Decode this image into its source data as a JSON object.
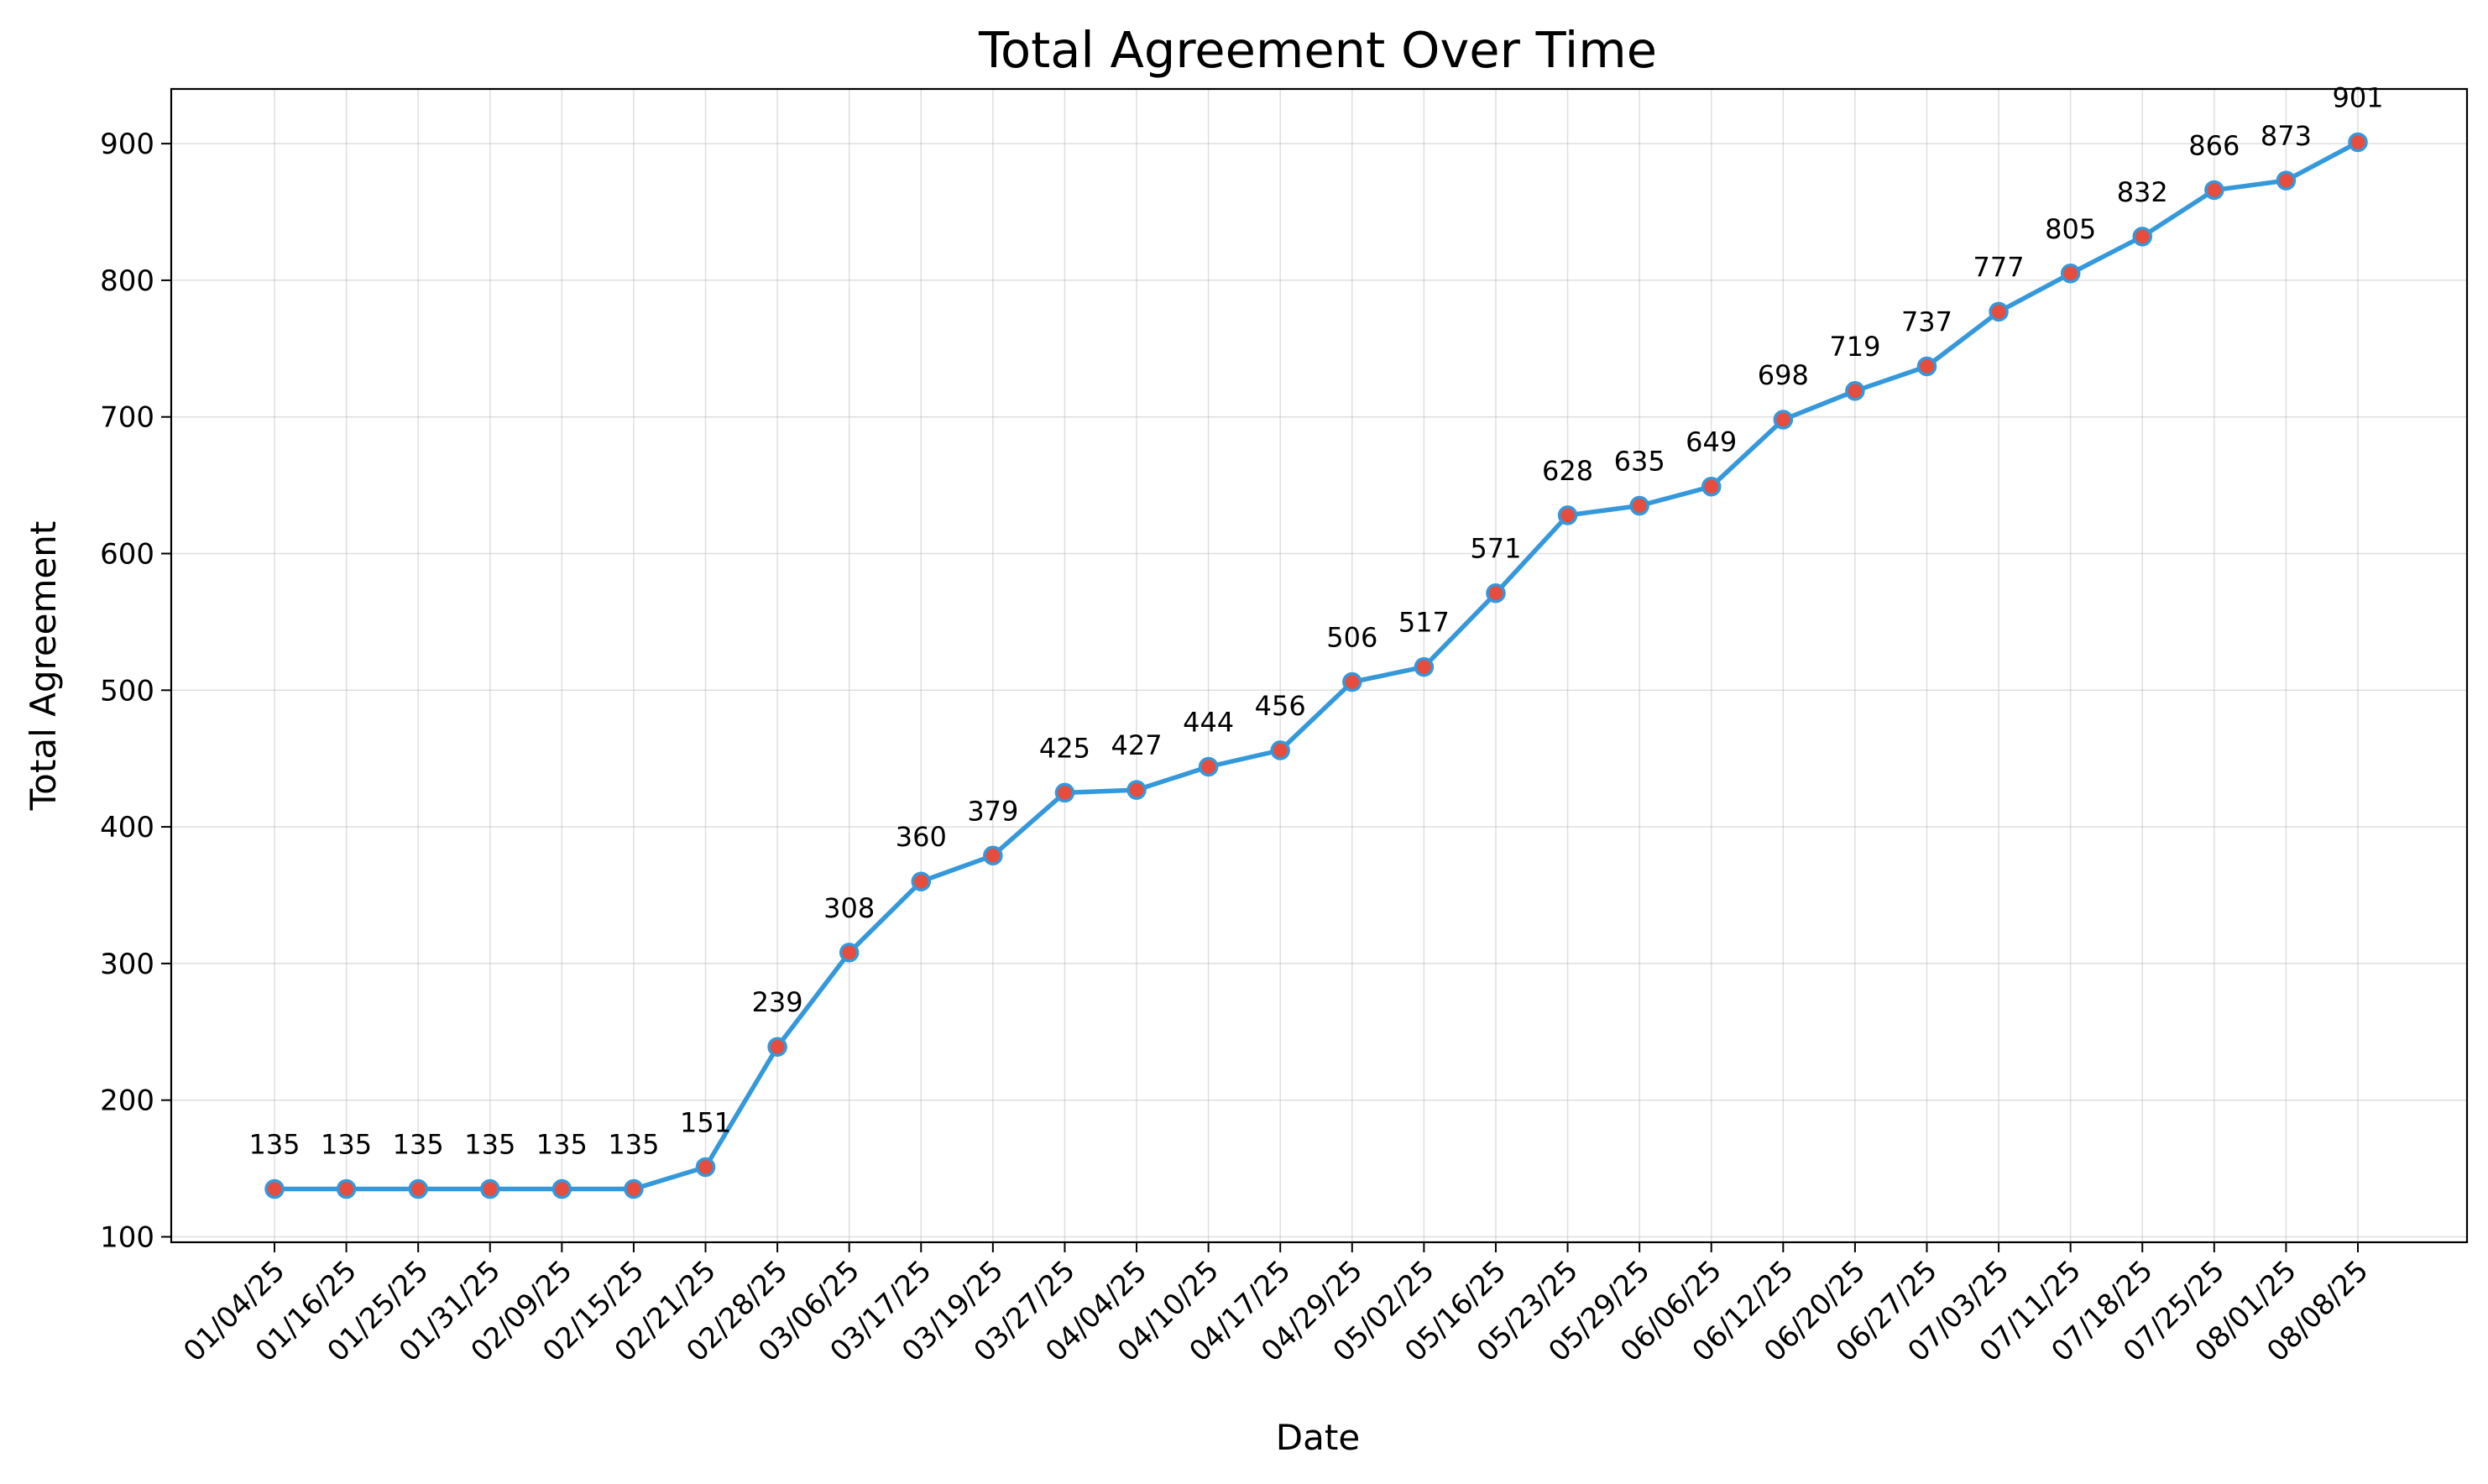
{
  "chart_data": {
    "type": "line",
    "title": "Total Agreement Over Time",
    "xlabel": "Date",
    "ylabel": "Total Agreement",
    "ylim": [
      96,
      940
    ],
    "yticks": [
      100,
      200,
      300,
      400,
      500,
      600,
      700,
      800,
      900
    ],
    "grid": true,
    "categories": [
      "01/04/25",
      "01/16/25",
      "01/25/25",
      "01/31/25",
      "02/09/25",
      "02/15/25",
      "02/21/25",
      "02/28/25",
      "03/06/25",
      "03/17/25",
      "03/19/25",
      "03/27/25",
      "04/04/25",
      "04/10/25",
      "04/17/25",
      "04/29/25",
      "05/02/25",
      "05/16/25",
      "05/23/25",
      "05/29/25",
      "06/06/25",
      "06/12/25",
      "06/20/25",
      "06/27/25",
      "07/03/25",
      "07/11/25",
      "07/18/25",
      "07/25/25",
      "08/01/25",
      "08/08/25"
    ],
    "series": [
      {
        "values": [
          135,
          135,
          135,
          135,
          135,
          135,
          151,
          239,
          308,
          360,
          379,
          425,
          427,
          444,
          456,
          506,
          517,
          571,
          628,
          635,
          649,
          698,
          719,
          737,
          777,
          805,
          832,
          866,
          873,
          901
        ],
        "line_color": "#3498db",
        "marker_color": "#e74c3c"
      }
    ]
  }
}
